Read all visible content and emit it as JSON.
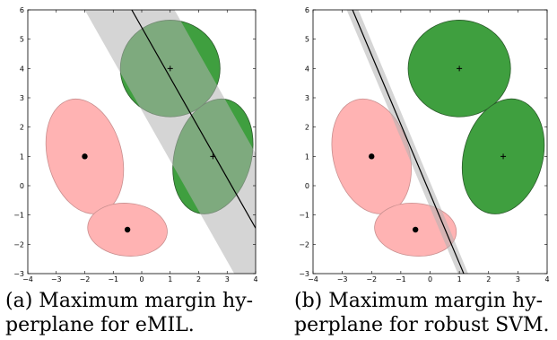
{
  "chart_data": [
    {
      "type": "scatter",
      "title": "",
      "xlabel": "",
      "ylabel": "",
      "xlim": [
        -4,
        4
      ],
      "ylim": [
        -3,
        6
      ],
      "grid": false,
      "x_ticks": [
        "−4",
        "−3",
        "−2",
        "−1",
        "0",
        "1",
        "2",
        "3",
        "4"
      ],
      "y_ticks": [
        "−3",
        "−2",
        "−1",
        "0",
        "1",
        "2",
        "3",
        "4",
        "5",
        "6"
      ],
      "ellipses": [
        {
          "class": "negative",
          "cx": -2.0,
          "cy": 1.0,
          "rx": 1.3,
          "ry": 2.0,
          "angle": -15,
          "color": "#ffb3b3",
          "center_marker": "dot"
        },
        {
          "class": "negative",
          "cx": -0.5,
          "cy": -1.5,
          "rx": 1.4,
          "ry": 0.9,
          "angle": 5,
          "color": "#ffb3b3",
          "center_marker": "dot"
        },
        {
          "class": "positive",
          "cx": 1.0,
          "cy": 4.0,
          "rx": 1.75,
          "ry": 1.65,
          "angle": 0,
          "color": "#3f9f3f",
          "center_marker": "plus"
        },
        {
          "class": "positive",
          "cx": 2.5,
          "cy": 1.0,
          "rx": 1.35,
          "ry": 2.0,
          "angle": 15,
          "color": "#3f9f3f",
          "center_marker": "plus"
        }
      ],
      "hyperplane": {
        "points": [
          [
            -0.35,
            6.0
          ],
          [
            4.0,
            -1.45
          ]
        ],
        "color": "#000000"
      },
      "margin_band": {
        "color": "#b3b3b3",
        "polygon": [
          [
            -2.0,
            6.0
          ],
          [
            1.15,
            6.0
          ],
          [
            4.0,
            1.1
          ],
          [
            4.0,
            -3.0
          ],
          [
            3.25,
            -3.0
          ]
        ]
      },
      "caption_label": "(a)",
      "caption_lines": [
        "Maximum margin hy-",
        "perplane for eMIL."
      ]
    },
    {
      "type": "scatter",
      "title": "",
      "xlabel": "",
      "ylabel": "",
      "xlim": [
        -4,
        4
      ],
      "ylim": [
        -3,
        6
      ],
      "grid": false,
      "x_ticks": [
        "−4",
        "−3",
        "−2",
        "−1",
        "0",
        "1",
        "2",
        "3",
        "4"
      ],
      "y_ticks": [
        "−3",
        "−2",
        "−1",
        "0",
        "1",
        "2",
        "3",
        "4",
        "5",
        "6"
      ],
      "ellipses": [
        {
          "class": "negative",
          "cx": -2.0,
          "cy": 1.0,
          "rx": 1.3,
          "ry": 2.0,
          "angle": -15,
          "color": "#ffb3b3",
          "center_marker": "dot"
        },
        {
          "class": "negative",
          "cx": -0.5,
          "cy": -1.5,
          "rx": 1.4,
          "ry": 0.9,
          "angle": 5,
          "color": "#ffb3b3",
          "center_marker": "dot"
        },
        {
          "class": "positive",
          "cx": 1.0,
          "cy": 4.0,
          "rx": 1.75,
          "ry": 1.65,
          "angle": 0,
          "color": "#3f9f3f",
          "center_marker": "plus"
        },
        {
          "class": "positive",
          "cx": 2.5,
          "cy": 1.0,
          "rx": 1.35,
          "ry": 2.0,
          "angle": 15,
          "color": "#3f9f3f",
          "center_marker": "plus"
        }
      ],
      "hyperplane": {
        "points": [
          [
            -2.65,
            6.0
          ],
          [
            1.15,
            -3.0
          ]
        ],
        "color": "#000000"
      },
      "margin_band": {
        "color": "#b3b3b3",
        "polygon": [
          [
            -2.85,
            6.0
          ],
          [
            -2.45,
            6.0
          ],
          [
            1.3,
            -3.0
          ],
          [
            0.95,
            -3.0
          ]
        ]
      },
      "caption_label": "(b)",
      "caption_lines": [
        "Maximum margin hy-",
        "perplane for robust SVM."
      ]
    }
  ]
}
